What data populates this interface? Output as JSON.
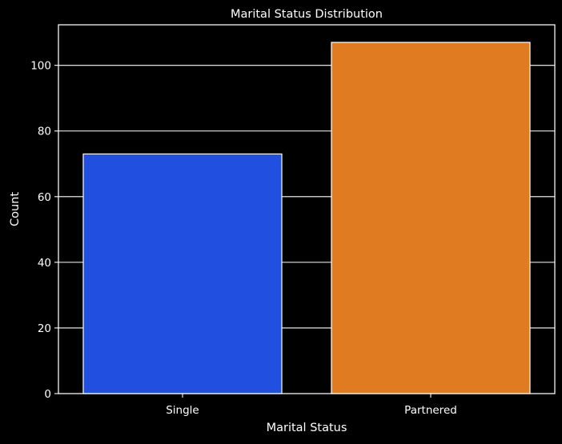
{
  "chart_data": {
    "type": "bar",
    "title": "Marital Status Distribution",
    "xlabel": "Marital Status",
    "ylabel": "Count",
    "categories": [
      "Single",
      "Partnered"
    ],
    "values": [
      73,
      107
    ],
    "ylim": [
      0,
      112.35
    ],
    "yticks": [
      0,
      20,
      40,
      60,
      80,
      100
    ],
    "grid": true,
    "legend": "none",
    "colors": {
      "background": "#000000",
      "axes": "#ffffff",
      "grid": "#ffffff",
      "text": "#ffffff",
      "bars": [
        "#2150e0",
        "#e07b21"
      ],
      "bar_edge": "#ffffff"
    }
  }
}
